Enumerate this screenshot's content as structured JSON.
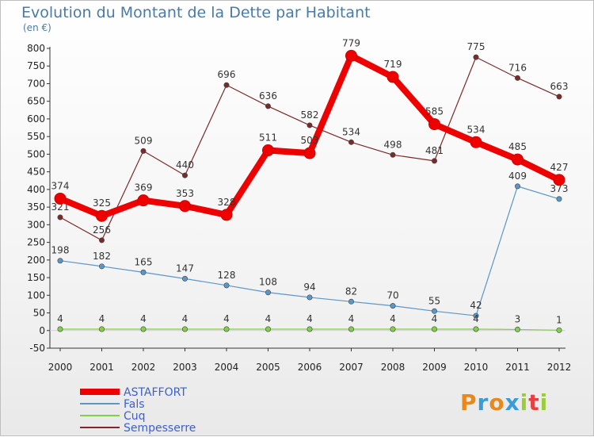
{
  "title": "Evolution du Montant de la Dette par Habitant",
  "unit": "(en €)",
  "logo": {
    "text": "Proxiti",
    "letters": [
      "P",
      "r",
      "o",
      "x",
      "i",
      "t",
      "i"
    ],
    "colors": [
      "#e8891e",
      "#3a9bd9",
      "#e8891e",
      "#3a9bd9",
      "#9ccc3c",
      "#e84040",
      "#9ccc3c"
    ]
  },
  "chart_data": {
    "type": "line",
    "title": "Evolution du Montant de la Dette par Habitant",
    "ylabel": "(en €)",
    "xlabel": "",
    "ylim": [
      -50,
      800
    ],
    "yticks": [
      -50,
      0,
      50,
      100,
      150,
      200,
      250,
      300,
      350,
      400,
      450,
      500,
      550,
      600,
      650,
      700,
      750,
      800
    ],
    "grid": false,
    "legend_position": "bottom-left",
    "categories": [
      "2000",
      "2001",
      "2002",
      "2003",
      "2004",
      "2005",
      "2006",
      "2007",
      "2008",
      "2009",
      "2010",
      "2011",
      "2012"
    ],
    "series": [
      {
        "name": "ASTAFFORT",
        "color": "#ee0000",
        "values": [
          374,
          325,
          369,
          353,
          328,
          511,
          503,
          779,
          719,
          585,
          534,
          485,
          427
        ]
      },
      {
        "name": "Fals",
        "color": "#5b96c8",
        "values": [
          198,
          182,
          165,
          147,
          128,
          108,
          94,
          82,
          70,
          55,
          42,
          409,
          373
        ]
      },
      {
        "name": "Cuq",
        "color": "#7fd04a",
        "values": [
          4,
          4,
          4,
          4,
          4,
          4,
          4,
          4,
          4,
          4,
          4,
          3,
          1
        ]
      },
      {
        "name": "Sempesserre",
        "color": "#7a2a2a",
        "values": [
          321,
          256,
          509,
          440,
          696,
          636,
          582,
          534,
          498,
          481,
          775,
          716,
          663
        ]
      }
    ]
  }
}
